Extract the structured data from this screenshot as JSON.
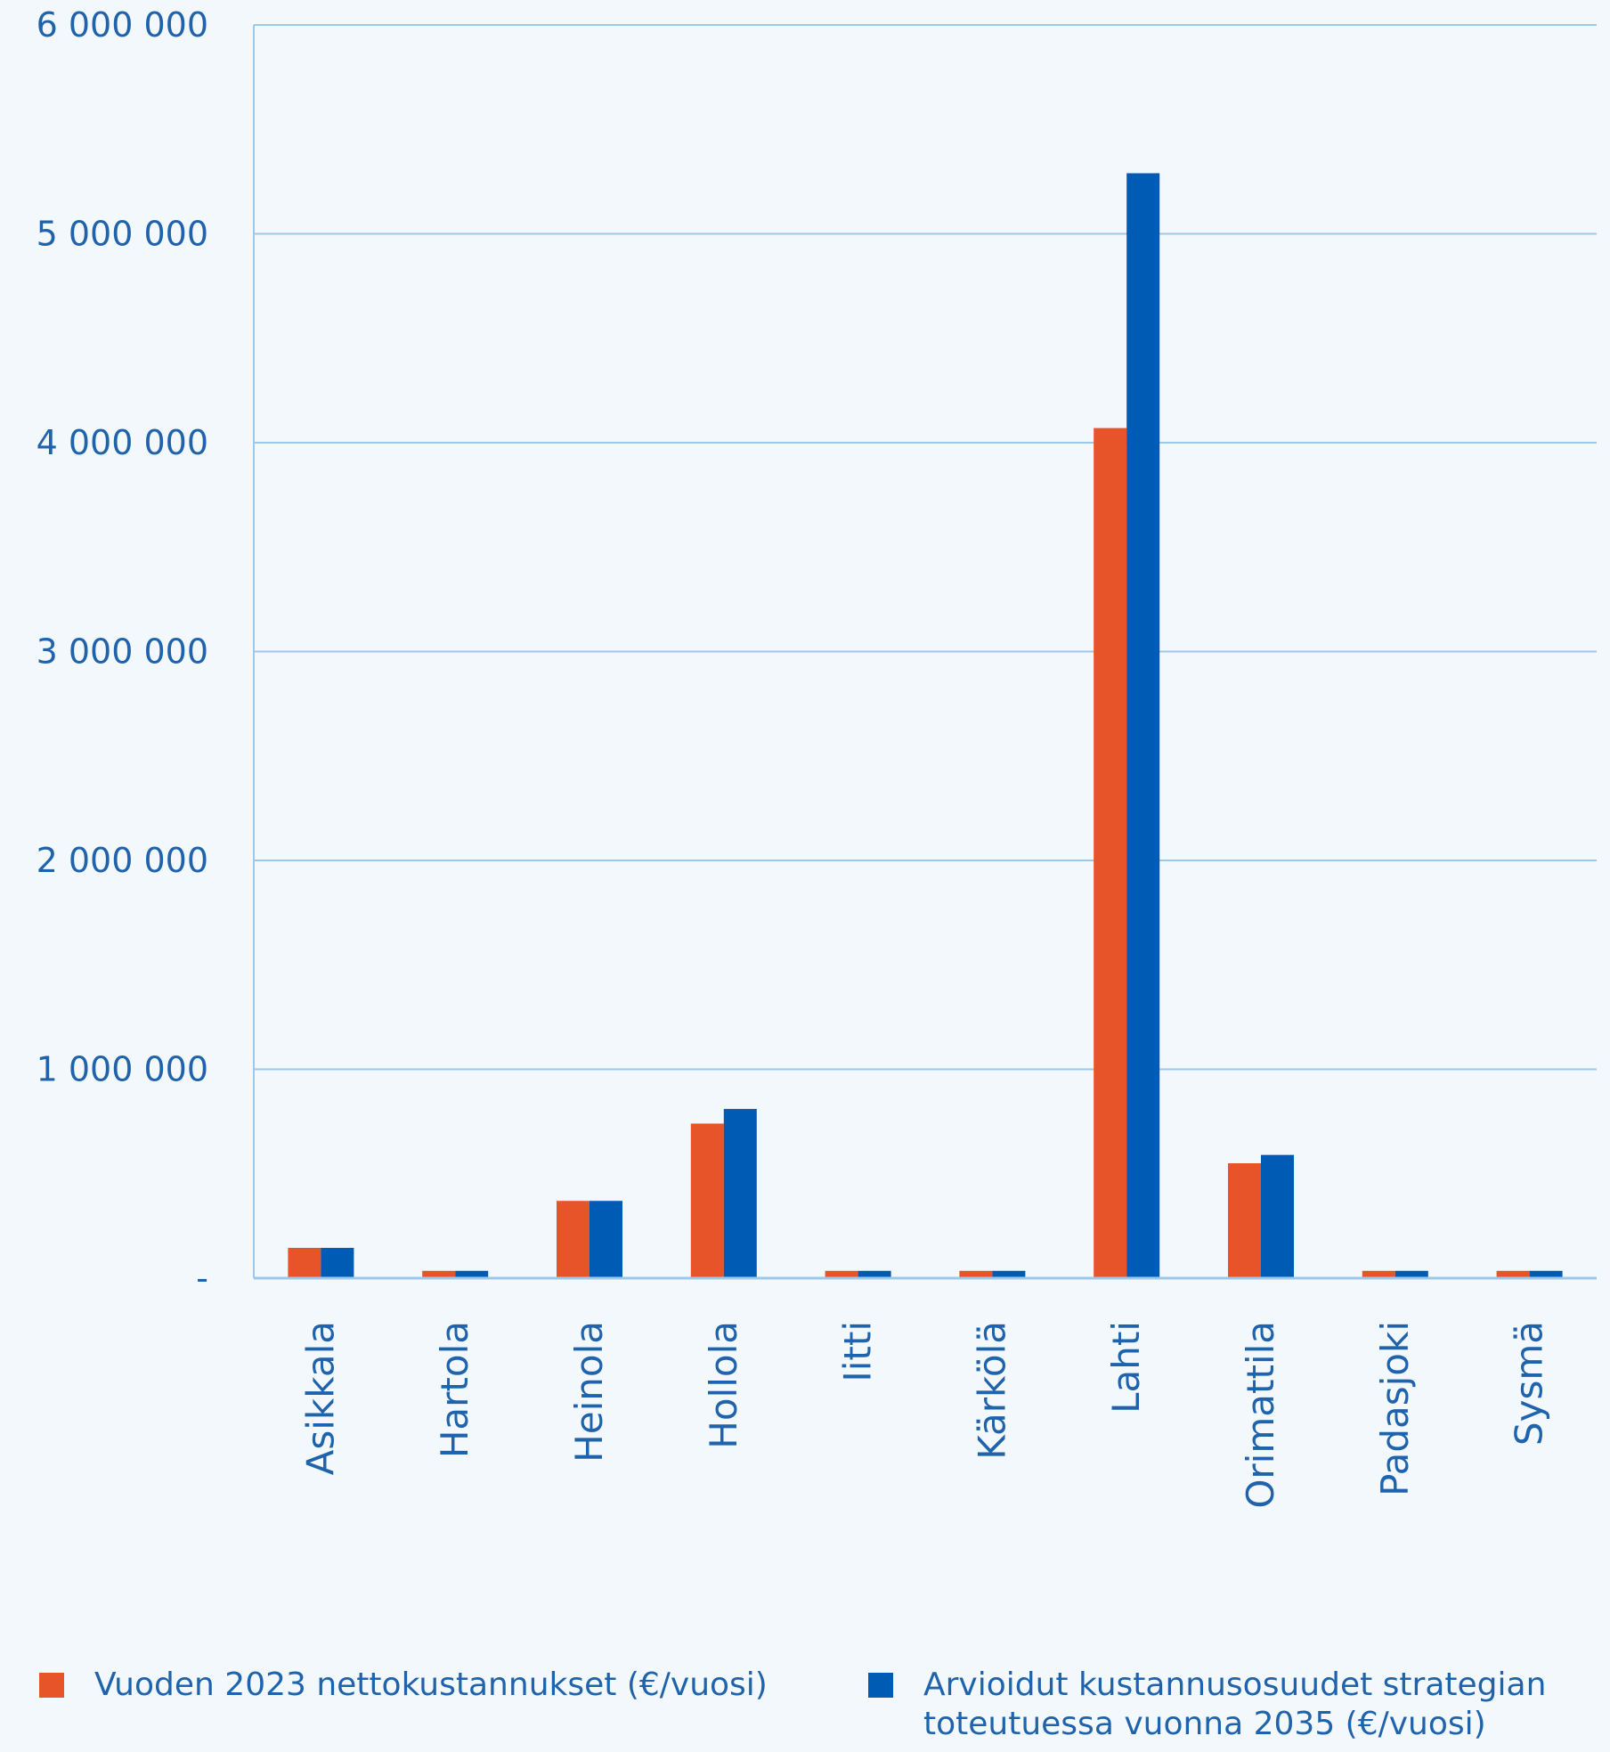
{
  "chart_data": {
    "type": "bar",
    "categories": [
      "Asikkala",
      "Hartola",
      "Heinola",
      "Hollola",
      "Iitti",
      "Kärkölä",
      "Lahti",
      "Orimattila",
      "Padasjoki",
      "Sysmä"
    ],
    "series": [
      {
        "name": "Vuoden 2023 nettokustannukset (€/vuosi)",
        "color": "#e8542a",
        "values": [
          145000,
          35000,
          370000,
          740000,
          35000,
          35000,
          4070000,
          550000,
          35000,
          35000
        ]
      },
      {
        "name": "Arvioidut kustannusosuudet strategian\ntoteutuessa vuonna 2035 (€/vuosi)",
        "color": "#005bb5",
        "values": [
          145000,
          35000,
          370000,
          810000,
          35000,
          35000,
          5290000,
          590000,
          35000,
          35000
        ]
      }
    ],
    "ylim": [
      0,
      6000000
    ],
    "yticks": [
      0,
      1000000,
      2000000,
      3000000,
      4000000,
      5000000,
      6000000
    ],
    "ytick_labels": [
      "-",
      "1 000 000",
      "2 000 000",
      "3 000 000",
      "4 000 000",
      "5 000 000",
      "6 000 000"
    ],
    "grid": true,
    "legend_position": "bottom",
    "axis_color": "#9cc9ea",
    "text_color": "#1f63ad"
  }
}
